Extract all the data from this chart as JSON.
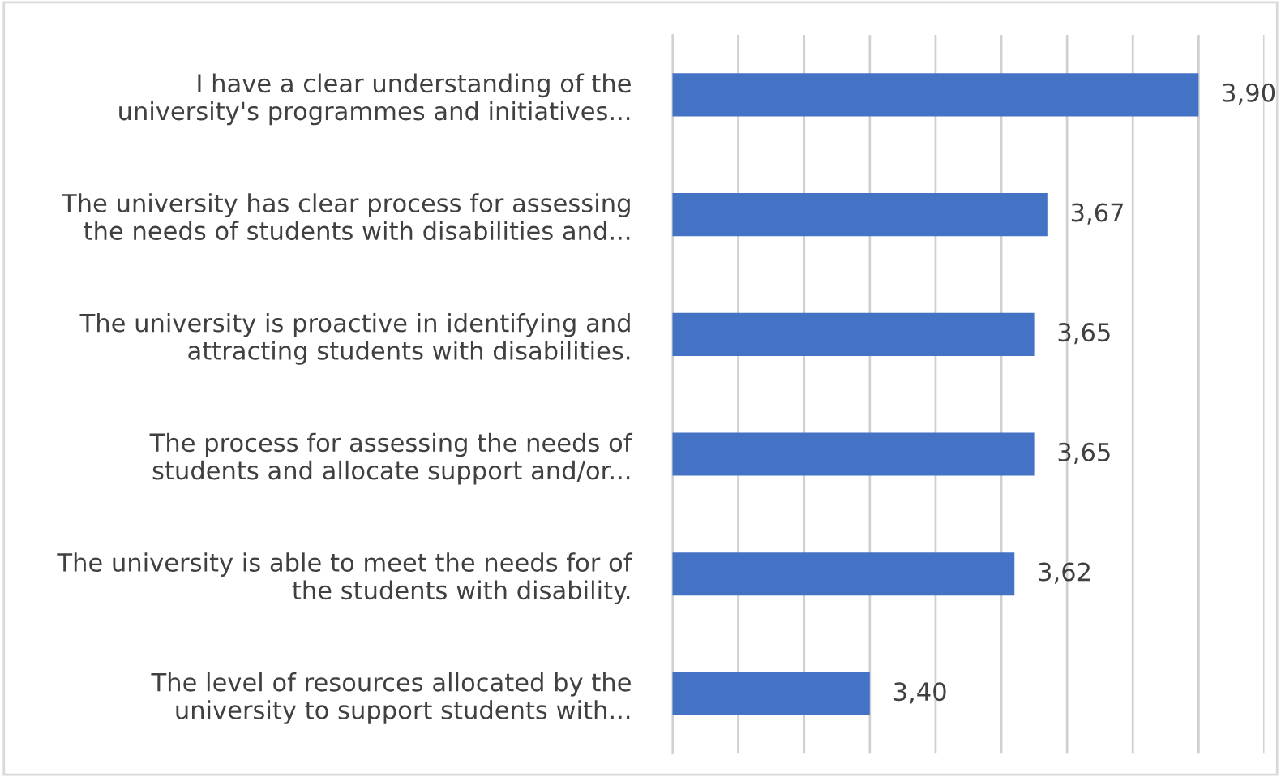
{
  "chart_data": {
    "type": "bar",
    "orientation": "horizontal",
    "categories": [
      "I have a clear understanding of the\nuniversity's programmes and initiatives...",
      "The university has clear process for assessing\nthe needs of students with disabilities and...",
      "The university is proactive in identifying and\nattracting students with disabilities.",
      "The process for assessing the needs of\nstudents and allocate support and/or...",
      "The university is able to meet the needs for of\nthe students with disability.",
      "The level of resources allocated by the\nuniversity to support students with..."
    ],
    "values": [
      3.9,
      3.67,
      3.65,
      3.65,
      3.62,
      3.4
    ],
    "value_labels": [
      "3,90",
      "3,67",
      "3,65",
      "3,65",
      "3,62",
      "3,40"
    ],
    "color": "#4472c4",
    "xlim": [
      3.1,
      4.0
    ],
    "xticks": [
      {
        "value": 3.1,
        "label": null
      },
      {
        "value": 3.2,
        "label": null
      },
      {
        "value": 3.3,
        "label": null
      },
      {
        "value": 3.4,
        "label": null
      },
      {
        "value": 3.5,
        "label": null
      },
      {
        "value": 3.6,
        "label": null
      },
      {
        "value": 3.7,
        "label": null
      },
      {
        "value": 3.8,
        "label": null
      },
      {
        "value": 3.9,
        "label": null
      },
      {
        "value": 4.0,
        "label": null
      }
    ],
    "tick_labels": "y",
    "grid": "x"
  }
}
